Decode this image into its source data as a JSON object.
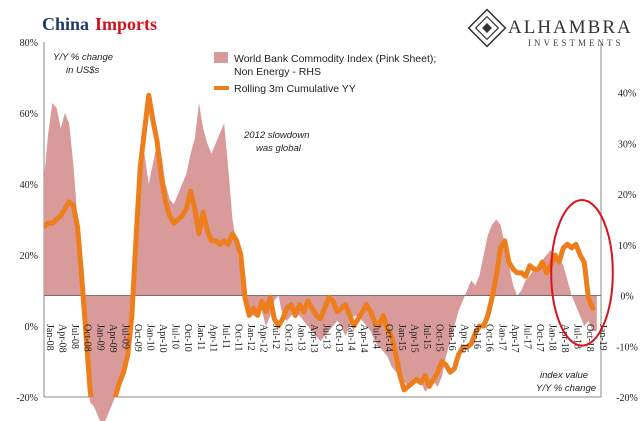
{
  "chart_data": {
    "type": "area+line",
    "title_part1": "China",
    "title_part2": "Imports",
    "brand": {
      "name": "ALHAMBRA",
      "subtitle": "INVESTMENTS"
    },
    "left_axis": {
      "unit_label_line1": "Y/Y % change",
      "unit_label_line2": "in US$s",
      "ylim": [
        -20,
        80
      ],
      "ticks": [
        "80%",
        "60%",
        "40%",
        "20%",
        "0%",
        "-20%"
      ]
    },
    "right_axis": {
      "unit_label_line1": "index value",
      "unit_label_line2": "Y/Y % change",
      "ylim": [
        -20,
        50
      ],
      "ticks": [
        "40%",
        "30%",
        "20%",
        "10%",
        "0%",
        "-10%",
        "-20%"
      ]
    },
    "annotation_line1": "2012 slowdown",
    "annotation_line2": "was global",
    "x_tick_labels": [
      "Jan-08",
      "Apr-08",
      "Jul-08",
      "Oct-08",
      "Jan-09",
      "Apr-09",
      "Jul-09",
      "Oct-09",
      "Jan-10",
      "Apr-10",
      "Jul-10",
      "Oct-10",
      "Jan-11",
      "Apr-11",
      "Jul-11",
      "Oct-11",
      "Jan-12",
      "Apr-12",
      "Jul-12",
      "Oct-12",
      "Jan-13",
      "Apr-13",
      "Jul-13",
      "Oct-13",
      "Jan-14",
      "Apr-14",
      "Jul-14",
      "Oct-14",
      "Jan-15",
      "Apr-15",
      "Jul-15",
      "Oct-15",
      "Jan-16",
      "Apr-16",
      "Jul-16",
      "Oct-16",
      "Jan-17",
      "Apr-17",
      "Jul-17",
      "Oct-17",
      "Jan-18",
      "Apr-18",
      "Jul-18",
      "Oct-18",
      "Jan-19"
    ],
    "series": [
      {
        "name": "World Bank Commodity Index (Pink Sheet);",
        "name_line2": "Non Energy - RHS",
        "axis": "right",
        "color": "#d99a9a",
        "points": [
          [
            "2008-01",
            23
          ],
          [
            "2008-02",
            32
          ],
          [
            "2008-03",
            38
          ],
          [
            "2008-04",
            37
          ],
          [
            "2008-05",
            33
          ],
          [
            "2008-06",
            36
          ],
          [
            "2008-07",
            34
          ],
          [
            "2008-08",
            26
          ],
          [
            "2008-09",
            15
          ],
          [
            "2008-10",
            0
          ],
          [
            "2008-11",
            -10
          ],
          [
            "2008-12",
            -21
          ],
          [
            "2009-01",
            -22
          ],
          [
            "2009-02",
            -24
          ],
          [
            "2009-03",
            -26
          ],
          [
            "2009-04",
            -24
          ],
          [
            "2009-05",
            -22
          ],
          [
            "2009-06",
            -20
          ],
          [
            "2009-07",
            -18
          ],
          [
            "2009-08",
            -14
          ],
          [
            "2009-09",
            -8
          ],
          [
            "2009-10",
            2
          ],
          [
            "2009-11",
            14
          ],
          [
            "2009-12",
            25
          ],
          [
            "2010-01",
            28
          ],
          [
            "2010-02",
            22
          ],
          [
            "2010-03",
            26
          ],
          [
            "2010-04",
            30
          ],
          [
            "2010-05",
            28
          ],
          [
            "2010-06",
            22
          ],
          [
            "2010-07",
            19
          ],
          [
            "2010-08",
            18
          ],
          [
            "2010-09",
            20
          ],
          [
            "2010-10",
            22
          ],
          [
            "2010-11",
            24
          ],
          [
            "2010-12",
            28
          ],
          [
            "2011-01",
            31
          ],
          [
            "2011-02",
            38
          ],
          [
            "2011-03",
            33
          ],
          [
            "2011-04",
            30
          ],
          [
            "2011-05",
            28
          ],
          [
            "2011-06",
            30
          ],
          [
            "2011-07",
            32
          ],
          [
            "2011-08",
            34
          ],
          [
            "2011-09",
            25
          ],
          [
            "2011-10",
            15
          ],
          [
            "2011-11",
            10
          ],
          [
            "2011-12",
            4
          ],
          [
            "2012-01",
            -2
          ],
          [
            "2012-02",
            -3
          ],
          [
            "2012-03",
            -4
          ],
          [
            "2012-04",
            -4
          ],
          [
            "2012-05",
            -3
          ],
          [
            "2012-06",
            -6
          ],
          [
            "2012-07",
            -4
          ],
          [
            "2012-08",
            -1
          ],
          [
            "2012-09",
            0
          ],
          [
            "2012-10",
            -4
          ],
          [
            "2012-11",
            -5
          ],
          [
            "2012-12",
            -4
          ],
          [
            "2013-01",
            -3
          ],
          [
            "2013-02",
            -4
          ],
          [
            "2013-03",
            -5
          ],
          [
            "2013-04",
            -6
          ],
          [
            "2013-05",
            -7
          ],
          [
            "2013-06",
            -8
          ],
          [
            "2013-07",
            -9
          ],
          [
            "2013-08",
            -8
          ],
          [
            "2013-09",
            -7
          ],
          [
            "2013-10",
            -6
          ],
          [
            "2013-11",
            -5
          ],
          [
            "2013-12",
            -6
          ],
          [
            "2014-01",
            -8
          ],
          [
            "2014-02",
            -6
          ],
          [
            "2014-03",
            -4
          ],
          [
            "2014-04",
            -4
          ],
          [
            "2014-05",
            -5
          ],
          [
            "2014-06",
            -6
          ],
          [
            "2014-07",
            -7
          ],
          [
            "2014-08",
            -9
          ],
          [
            "2014-09",
            -10
          ],
          [
            "2014-10",
            -11
          ],
          [
            "2014-11",
            -12
          ],
          [
            "2014-12",
            -14
          ],
          [
            "2015-01",
            -15
          ],
          [
            "2015-02",
            -16
          ],
          [
            "2015-03",
            -17
          ],
          [
            "2015-04",
            -18
          ],
          [
            "2015-05",
            -17
          ],
          [
            "2015-06",
            -16
          ],
          [
            "2015-07",
            -17
          ],
          [
            "2015-08",
            -19
          ],
          [
            "2015-09",
            -18
          ],
          [
            "2015-10",
            -17
          ],
          [
            "2015-11",
            -18
          ],
          [
            "2015-12",
            -16
          ],
          [
            "2016-01",
            -12
          ],
          [
            "2016-02",
            -9
          ],
          [
            "2016-03",
            -6
          ],
          [
            "2016-04",
            -3
          ],
          [
            "2016-05",
            -1
          ],
          [
            "2016-06",
            1
          ],
          [
            "2016-07",
            3
          ],
          [
            "2016-08",
            2
          ],
          [
            "2016-09",
            4
          ],
          [
            "2016-10",
            8
          ],
          [
            "2016-11",
            12
          ],
          [
            "2016-12",
            14
          ],
          [
            "2017-01",
            15
          ],
          [
            "2017-02",
            14
          ],
          [
            "2017-03",
            10
          ],
          [
            "2017-04",
            6
          ],
          [
            "2017-05",
            2
          ],
          [
            "2017-06",
            0
          ],
          [
            "2017-07",
            1
          ],
          [
            "2017-08",
            3
          ],
          [
            "2017-09",
            4
          ],
          [
            "2017-10",
            5
          ],
          [
            "2017-11",
            6
          ],
          [
            "2017-12",
            7
          ],
          [
            "2018-01",
            8
          ],
          [
            "2018-02",
            9
          ],
          [
            "2018-03",
            8
          ],
          [
            "2018-04",
            7
          ],
          [
            "2018-05",
            6
          ],
          [
            "2018-06",
            3
          ],
          [
            "2018-07",
            0
          ],
          [
            "2018-08",
            -2
          ],
          [
            "2018-09",
            -4
          ],
          [
            "2018-10",
            -6
          ],
          [
            "2018-11",
            -5
          ],
          [
            "2018-12",
            -7
          ],
          [
            "2019-01",
            -7
          ]
        ]
      },
      {
        "name": "Rolling 3m Cumulative YY",
        "axis": "left",
        "color": "#ee7d1c",
        "points": [
          [
            "2008-01",
            28
          ],
          [
            "2008-02",
            29
          ],
          [
            "2008-03",
            29
          ],
          [
            "2008-04",
            30
          ],
          [
            "2008-05",
            31
          ],
          [
            "2008-06",
            33
          ],
          [
            "2008-07",
            35
          ],
          [
            "2008-08",
            34
          ],
          [
            "2008-09",
            28
          ],
          [
            "2008-10",
            14
          ],
          [
            "2008-11",
            -2
          ],
          [
            "2008-12",
            -18
          ],
          [
            "2009-01",
            -28
          ],
          [
            "2009-02",
            -32
          ],
          [
            "2009-03",
            -30
          ],
          [
            "2009-04",
            -26
          ],
          [
            "2009-05",
            -24
          ],
          [
            "2009-06",
            -20
          ],
          [
            "2009-07",
            -16
          ],
          [
            "2009-08",
            -13
          ],
          [
            "2009-09",
            -8
          ],
          [
            "2009-10",
            3
          ],
          [
            "2009-11",
            25
          ],
          [
            "2009-12",
            45
          ],
          [
            "2010-01",
            55
          ],
          [
            "2010-02",
            65
          ],
          [
            "2010-03",
            58
          ],
          [
            "2010-04",
            52
          ],
          [
            "2010-05",
            42
          ],
          [
            "2010-06",
            35
          ],
          [
            "2010-07",
            31
          ],
          [
            "2010-08",
            29
          ],
          [
            "2010-09",
            30
          ],
          [
            "2010-10",
            31
          ],
          [
            "2010-11",
            33
          ],
          [
            "2010-12",
            38
          ],
          [
            "2011-01",
            33
          ],
          [
            "2011-02",
            26
          ],
          [
            "2011-03",
            32
          ],
          [
            "2011-04",
            27
          ],
          [
            "2011-05",
            24
          ],
          [
            "2011-06",
            24
          ],
          [
            "2011-07",
            23
          ],
          [
            "2011-08",
            24
          ],
          [
            "2011-09",
            23
          ],
          [
            "2011-10",
            26
          ],
          [
            "2011-11",
            24
          ],
          [
            "2011-12",
            20
          ],
          [
            "2012-01",
            8
          ],
          [
            "2012-02",
            3
          ],
          [
            "2012-03",
            5
          ],
          [
            "2012-04",
            3
          ],
          [
            "2012-05",
            7
          ],
          [
            "2012-06",
            4
          ],
          [
            "2012-07",
            8
          ],
          [
            "2012-08",
            2
          ],
          [
            "2012-09",
            0
          ],
          [
            "2012-10",
            2
          ],
          [
            "2012-11",
            5
          ],
          [
            "2012-12",
            6
          ],
          [
            "2013-01",
            3
          ],
          [
            "2013-02",
            6
          ],
          [
            "2013-03",
            4
          ],
          [
            "2013-04",
            7
          ],
          [
            "2013-05",
            5
          ],
          [
            "2013-06",
            3
          ],
          [
            "2013-07",
            2
          ],
          [
            "2013-08",
            5
          ],
          [
            "2013-09",
            8
          ],
          [
            "2013-10",
            7
          ],
          [
            "2013-11",
            4
          ],
          [
            "2013-12",
            5
          ],
          [
            "2014-01",
            6
          ],
          [
            "2014-02",
            3
          ],
          [
            "2014-03",
            0
          ],
          [
            "2014-04",
            2
          ],
          [
            "2014-05",
            4
          ],
          [
            "2014-06",
            6
          ],
          [
            "2014-07",
            4
          ],
          [
            "2014-08",
            1
          ],
          [
            "2014-09",
            0
          ],
          [
            "2014-10",
            3
          ],
          [
            "2014-11",
            -1
          ],
          [
            "2014-12",
            -3
          ],
          [
            "2015-01",
            -8
          ],
          [
            "2015-02",
            -14
          ],
          [
            "2015-03",
            -18
          ],
          [
            "2015-04",
            -17
          ],
          [
            "2015-05",
            -16
          ],
          [
            "2015-06",
            -15
          ],
          [
            "2015-07",
            -16
          ],
          [
            "2015-08",
            -14
          ],
          [
            "2015-09",
            -17
          ],
          [
            "2015-10",
            -15
          ],
          [
            "2015-11",
            -13
          ],
          [
            "2015-12",
            -10
          ],
          [
            "2016-01",
            -11
          ],
          [
            "2016-02",
            -13
          ],
          [
            "2016-03",
            -12
          ],
          [
            "2016-04",
            -8
          ],
          [
            "2016-05",
            -6
          ],
          [
            "2016-06",
            -6
          ],
          [
            "2016-07",
            -5
          ],
          [
            "2016-08",
            -2
          ],
          [
            "2016-09",
            0
          ],
          [
            "2016-10",
            0
          ],
          [
            "2016-11",
            3
          ],
          [
            "2016-12",
            8
          ],
          [
            "2017-01",
            14
          ],
          [
            "2017-02",
            22
          ],
          [
            "2017-03",
            24
          ],
          [
            "2017-04",
            18
          ],
          [
            "2017-05",
            16
          ],
          [
            "2017-06",
            15
          ],
          [
            "2017-07",
            15
          ],
          [
            "2017-08",
            14
          ],
          [
            "2017-09",
            17
          ],
          [
            "2017-10",
            16
          ],
          [
            "2017-11",
            16
          ],
          [
            "2017-12",
            18
          ],
          [
            "2018-01",
            15
          ],
          [
            "2018-02",
            17
          ],
          [
            "2018-03",
            20
          ],
          [
            "2018-04",
            18
          ],
          [
            "2018-05",
            22
          ],
          [
            "2018-06",
            23
          ],
          [
            "2018-07",
            22
          ],
          [
            "2018-08",
            23
          ],
          [
            "2018-09",
            20
          ],
          [
            "2018-10",
            18
          ],
          [
            "2018-11",
            8
          ],
          [
            "2018-12",
            5
          ]
        ]
      }
    ],
    "highlight": {
      "color": "#d7141c",
      "from": "2018-04",
      "to": "2019-01"
    }
  }
}
